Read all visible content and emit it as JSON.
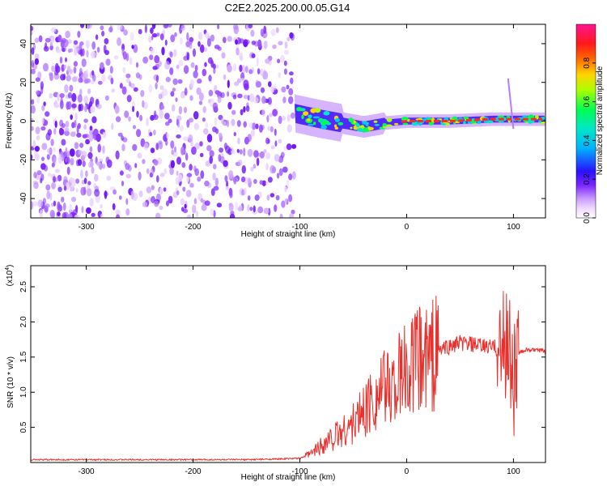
{
  "page_title": "C2E2.2025.200.00.05.G14",
  "chart_data": [
    {
      "type": "heatmap",
      "xlabel": "Height of straight line (km)",
      "ylabel": "Frequency (Hz)",
      "xlim": [
        -352,
        130
      ],
      "ylim": [
        -50,
        50
      ],
      "xticks": [
        -300,
        -200,
        -100,
        0,
        100
      ],
      "yticks": [
        -40,
        -20,
        0,
        20,
        40
      ],
      "grid": false,
      "colorbar": {
        "label": "Normalized spectral amplitude",
        "range": [
          0,
          1
        ],
        "ticks": [
          0.0,
          0.2,
          0.4,
          0.6,
          0.8
        ],
        "colormap": [
          "#ffffff",
          "#f2d8ff",
          "#c89bff",
          "#8a2be2",
          "#3a10ff",
          "#00c8ff",
          "#00ff50",
          "#c8ff00",
          "#ffd000",
          "#ff3c00",
          "#ff1493"
        ]
      },
      "noise_region_x": [
        -352,
        -105
      ],
      "signal_trace": [
        {
          "x": -105,
          "y": 4
        },
        {
          "x": -80,
          "y": 1
        },
        {
          "x": -60,
          "y": -1
        },
        {
          "x": -40,
          "y": -3
        },
        {
          "x": -20,
          "y": -1
        },
        {
          "x": 0,
          "y": 0
        },
        {
          "x": 40,
          "y": 0
        },
        {
          "x": 80,
          "y": 1
        },
        {
          "x": 100,
          "y": 1
        },
        {
          "x": 130,
          "y": 1
        }
      ]
    },
    {
      "type": "line",
      "xlabel": "Height of straight line (km)",
      "ylabel": "SNR (10 * v/v)",
      "y_scale_label": "(x10",
      "y_scale_exp": "4",
      "y_scale_close": ")",
      "xlim": [
        -352,
        130
      ],
      "ylim": [
        0,
        2.8
      ],
      "xticks": [
        -300,
        -200,
        -100,
        0,
        100
      ],
      "yticks": [
        "0.5",
        "1.0",
        "1.5",
        "2.0",
        "2.5"
      ],
      "grid": false,
      "color": "#e8302c",
      "x": [
        -352,
        -300,
        -250,
        -200,
        -150,
        -120,
        -100,
        -90,
        -80,
        -70,
        -60,
        -50,
        -40,
        -30,
        -20,
        -10,
        0,
        10,
        20,
        30,
        40,
        50,
        60,
        70,
        80,
        90,
        95,
        100,
        105,
        110,
        120,
        130
      ],
      "y": [
        0.04,
        0.04,
        0.04,
        0.04,
        0.04,
        0.05,
        0.06,
        0.12,
        0.25,
        0.35,
        0.45,
        0.55,
        0.75,
        0.95,
        1.05,
        1.15,
        1.3,
        1.45,
        1.5,
        1.6,
        1.65,
        1.7,
        1.68,
        1.65,
        1.65,
        1.6,
        1.8,
        1.2,
        1.55,
        1.6,
        1.6,
        1.58
      ]
    }
  ]
}
